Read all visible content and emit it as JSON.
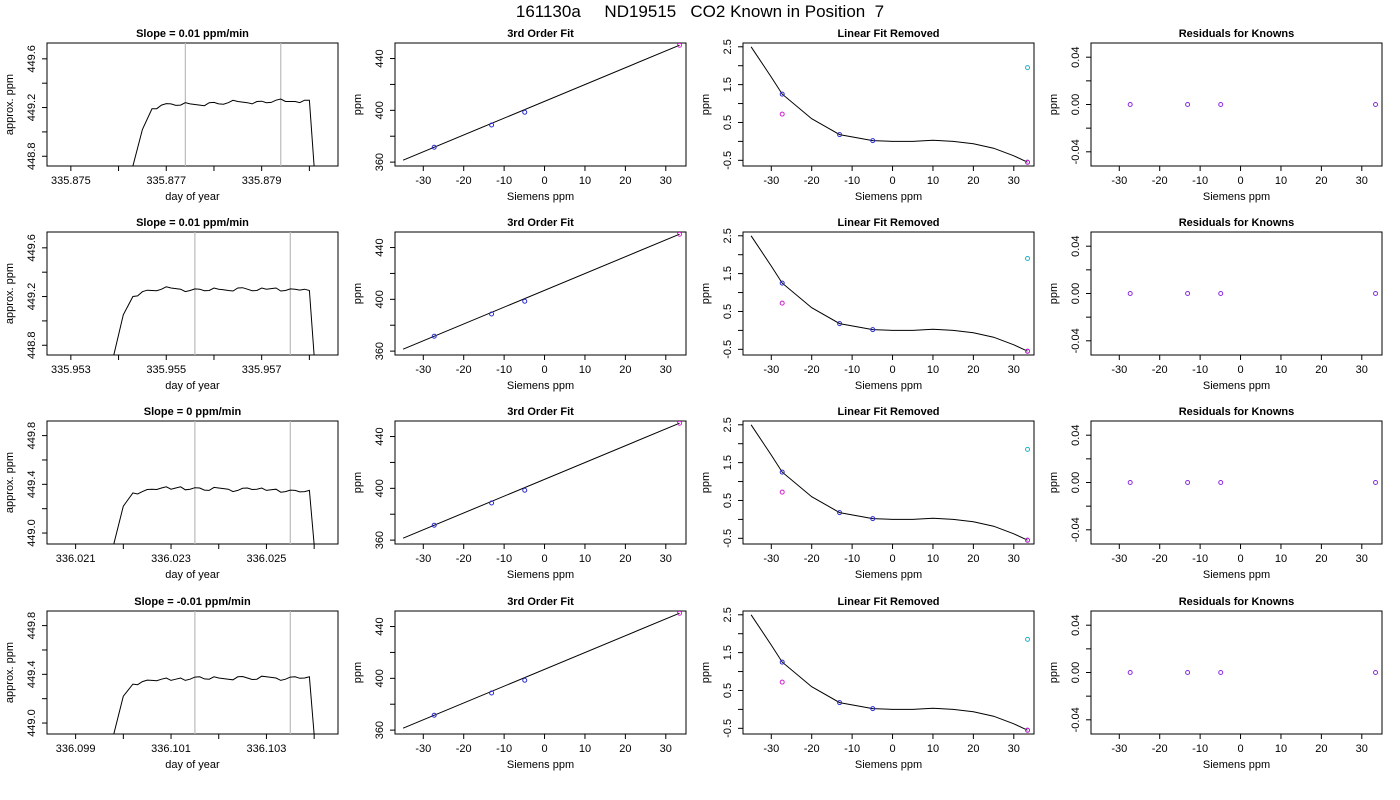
{
  "main_title": "161130a     ND19515   CO2 Known in Position  7",
  "colors": {
    "trace": "#000000",
    "cutoff_lines": "#bbbbbb",
    "fit_points": "#2a2ad0",
    "reference_points": "#d020d0",
    "residual_points": "#8a2be2",
    "fit_curve": "#000000",
    "outlier_point": "#20b0c8"
  },
  "chart_data": [
    {
      "type": "line",
      "row": 1,
      "panel": "timeseries",
      "title": "Slope =  0.01  ppm/min",
      "xlabel": "day of year",
      "ylabel": "approx. ppm",
      "xlim": [
        335.8745,
        335.8806
      ],
      "ylim": [
        448.72,
        449.73
      ],
      "xticks": [
        "335.875",
        "335.877",
        "335.879"
      ],
      "xtick_values": [
        335.875,
        335.876,
        335.877,
        335.878,
        335.879,
        335.88
      ],
      "xtick_labels_at": [
        335.875,
        335.877,
        335.879
      ],
      "yticks": [
        "448.8",
        "449.2",
        "449.6"
      ],
      "ytick_values": [
        448.8,
        449.0,
        449.2,
        449.4,
        449.6
      ],
      "ytick_labels_at": [
        448.8,
        449.2,
        449.6
      ],
      "vlines": [
        335.8774,
        335.8794
      ],
      "series": [
        {
          "x": [
            335.8763,
            335.8765,
            335.8767,
            335.8769,
            335.8771,
            335.8773,
            335.8775,
            335.8777,
            335.8779,
            335.8781,
            335.8783,
            335.8785,
            335.8787,
            335.8789,
            335.8791,
            335.8793,
            335.8795,
            335.8797,
            335.8799,
            335.88,
            335.8801
          ],
          "y": [
            448.72,
            449.02,
            449.19,
            449.22,
            449.23,
            449.22,
            449.23,
            449.22,
            449.24,
            449.23,
            449.24,
            449.25,
            449.24,
            449.25,
            449.24,
            449.26,
            449.25,
            449.25,
            449.26,
            449.26,
            448.72
          ]
        }
      ]
    },
    {
      "type": "line",
      "row": 1,
      "panel": "fit",
      "title": "3rd Order Fit",
      "xlabel": "Siemens ppm",
      "ylabel": "ppm",
      "xlim": [
        -37,
        35
      ],
      "ylim": [
        357,
        452
      ],
      "xticks": [
        -30,
        -20,
        -10,
        0,
        10,
        20,
        30
      ],
      "yticks": [
        360,
        400,
        440
      ],
      "minor_yticks": [
        380,
        420
      ],
      "points": [
        [
          -27.3,
          371.5
        ],
        [
          -13.1,
          388.7
        ],
        [
          -4.9,
          398.5
        ],
        [
          33.4,
          450.3
        ]
      ]
    },
    {
      "type": "scatter",
      "row": 1,
      "panel": "linear_removed",
      "title": "Linear Fit Removed",
      "xlabel": "Siemens ppm",
      "ylabel": "ppm",
      "xlim": [
        -37,
        35
      ],
      "ylim": [
        -0.65,
        2.6
      ],
      "xticks": [
        -30,
        -20,
        -10,
        0,
        10,
        20,
        30
      ],
      "yticks": [
        -0.5,
        0.5,
        1.5,
        2.5
      ],
      "minor_yticks": [
        0.0,
        1.0,
        2.0
      ],
      "fit_points": [
        [
          -27.3,
          1.25
        ],
        [
          -13.1,
          0.18
        ],
        [
          -4.9,
          0.02
        ],
        [
          33.4,
          -0.55
        ]
      ],
      "reference_points": [
        [
          -27.3,
          0.72
        ],
        [
          33.4,
          -0.55
        ]
      ],
      "outlier_points": [
        [
          33.4,
          1.95
        ]
      ],
      "curve_coeffs": [
        0.016,
        -0.0112,
        0.00038,
        -1.62e-05
      ]
    },
    {
      "type": "scatter",
      "row": 1,
      "panel": "residuals",
      "title": "Residuals for Knowns",
      "xlabel": "Siemens ppm",
      "ylabel": "ppm",
      "xlim": [
        -37,
        35
      ],
      "ylim": [
        -0.052,
        0.052
      ],
      "xticks": [
        -30,
        -20,
        -10,
        0,
        10,
        20,
        30
      ],
      "yticks": [
        "-0.04",
        "0.00",
        "0.04"
      ],
      "ytick_values": [
        -0.04,
        0.0,
        0.04
      ],
      "minor_yticks": [
        -0.02,
        0.02
      ],
      "points": [
        [
          -27.3,
          0
        ],
        [
          -13.1,
          0
        ],
        [
          -4.9,
          0
        ],
        [
          33.4,
          0
        ]
      ]
    },
    {
      "type": "line",
      "row": 2,
      "panel": "timeseries",
      "title": "Slope =  0.01  ppm/min",
      "xlabel": "day of year",
      "ylabel": "approx. ppm",
      "xlim": [
        335.9525,
        335.9586
      ],
      "ylim": [
        448.72,
        449.73
      ],
      "xticks": [
        "335.953",
        "335.955",
        "335.957"
      ],
      "xtick_values": [
        335.953,
        335.954,
        335.955,
        335.956,
        335.957,
        335.958
      ],
      "xtick_labels_at": [
        335.953,
        335.955,
        335.957
      ],
      "yticks": [
        "448.8",
        "449.2",
        "449.6"
      ],
      "ytick_values": [
        448.8,
        449.0,
        449.2,
        449.4,
        449.6
      ],
      "ytick_labels_at": [
        448.8,
        449.2,
        449.6
      ],
      "vlines": [
        335.9556,
        335.9576
      ],
      "series": [
        {
          "x": [
            335.9539,
            335.9541,
            335.9543,
            335.9545,
            335.9547,
            335.9549,
            335.9551,
            335.9553,
            335.9555,
            335.9557,
            335.9559,
            335.9561,
            335.9563,
            335.9565,
            335.9567,
            335.9569,
            335.9571,
            335.9573,
            335.9575,
            335.9577,
            335.9579,
            335.958,
            335.9581
          ],
          "y": [
            448.72,
            449.05,
            449.2,
            449.24,
            449.25,
            449.26,
            449.27,
            449.26,
            449.25,
            449.26,
            449.25,
            449.26,
            449.25,
            449.27,
            449.26,
            449.25,
            449.26,
            449.27,
            449.25,
            449.26,
            449.26,
            449.25,
            448.72
          ]
        }
      ]
    },
    {
      "type": "line",
      "row": 2,
      "panel": "fit",
      "title": "3rd Order Fit",
      "xlabel": "Siemens ppm",
      "ylabel": "ppm",
      "xlim": [
        -37,
        35
      ],
      "ylim": [
        357,
        452
      ],
      "xticks": [
        -30,
        -20,
        -10,
        0,
        10,
        20,
        30
      ],
      "yticks": [
        360,
        400,
        440
      ],
      "minor_yticks": [
        380,
        420
      ],
      "points": [
        [
          -27.3,
          371.5
        ],
        [
          -13.1,
          388.7
        ],
        [
          -4.9,
          398.5
        ],
        [
          33.4,
          450.3
        ]
      ]
    },
    {
      "type": "scatter",
      "row": 2,
      "panel": "linear_removed",
      "title": "Linear Fit Removed",
      "xlabel": "Siemens ppm",
      "ylabel": "ppm",
      "xlim": [
        -37,
        35
      ],
      "ylim": [
        -0.65,
        2.6
      ],
      "xticks": [
        -30,
        -20,
        -10,
        0,
        10,
        20,
        30
      ],
      "yticks": [
        -0.5,
        0.5,
        1.5,
        2.5
      ],
      "minor_yticks": [
        0.0,
        1.0,
        2.0
      ],
      "fit_points": [
        [
          -27.3,
          1.25
        ],
        [
          -13.1,
          0.18
        ],
        [
          -4.9,
          0.02
        ],
        [
          33.4,
          -0.55
        ]
      ],
      "reference_points": [
        [
          -27.3,
          0.72
        ],
        [
          33.4,
          -0.55
        ]
      ],
      "outlier_points": [
        [
          33.4,
          1.9
        ]
      ],
      "curve_coeffs": [
        0.016,
        -0.0112,
        0.00038,
        -1.62e-05
      ]
    },
    {
      "type": "scatter",
      "row": 2,
      "panel": "residuals",
      "title": "Residuals for Knowns",
      "xlabel": "Siemens ppm",
      "ylabel": "ppm",
      "xlim": [
        -37,
        35
      ],
      "ylim": [
        -0.052,
        0.052
      ],
      "xticks": [
        -30,
        -20,
        -10,
        0,
        10,
        20,
        30
      ],
      "yticks": [
        "-0.04",
        "0.00",
        "0.04"
      ],
      "ytick_values": [
        -0.04,
        0.0,
        0.04
      ],
      "minor_yticks": [
        -0.02,
        0.02
      ],
      "points": [
        [
          -27.3,
          0
        ],
        [
          -13.1,
          0
        ],
        [
          -4.9,
          0
        ],
        [
          33.4,
          0
        ]
      ]
    },
    {
      "type": "line",
      "row": 3,
      "panel": "timeseries",
      "title": "Slope =  0  ppm/min",
      "xlabel": "day of year",
      "ylabel": "approx. ppm",
      "xlim": [
        336.0204,
        336.0265
      ],
      "ylim": [
        448.91,
        449.92
      ],
      "xticks": [
        "336.021",
        "336.023",
        "336.025"
      ],
      "xtick_values": [
        336.021,
        336.022,
        336.023,
        336.024,
        336.025,
        336.026
      ],
      "xtick_labels_at": [
        336.021,
        336.023,
        336.025
      ],
      "yticks": [
        "449.0",
        "449.4",
        "449.8"
      ],
      "ytick_values": [
        449.0,
        449.2,
        449.4,
        449.6,
        449.8
      ],
      "ytick_labels_at": [
        449.0,
        449.4,
        449.8
      ],
      "vlines": [
        336.0235,
        336.0255
      ],
      "series": [
        {
          "x": [
            336.0218,
            336.022,
            336.0222,
            336.0224,
            336.0226,
            336.0228,
            336.023,
            336.0232,
            336.0234,
            336.0236,
            336.0238,
            336.024,
            336.0242,
            336.0244,
            336.0246,
            336.0248,
            336.025,
            336.0252,
            336.0254,
            336.0256,
            336.0258,
            336.0259,
            336.026
          ],
          "y": [
            448.91,
            449.22,
            449.33,
            449.34,
            449.36,
            449.37,
            449.36,
            449.38,
            449.36,
            449.37,
            449.35,
            449.37,
            449.36,
            449.35,
            449.37,
            449.36,
            449.35,
            449.36,
            449.34,
            449.35,
            449.34,
            449.35,
            448.91
          ]
        }
      ]
    },
    {
      "type": "line",
      "row": 3,
      "panel": "fit",
      "title": "3rd Order Fit",
      "xlabel": "Siemens ppm",
      "ylabel": "ppm",
      "xlim": [
        -37,
        35
      ],
      "ylim": [
        357,
        452
      ],
      "xticks": [
        -30,
        -20,
        -10,
        0,
        10,
        20,
        30
      ],
      "yticks": [
        360,
        400,
        440
      ],
      "minor_yticks": [
        380,
        420
      ],
      "points": [
        [
          -27.3,
          371.5
        ],
        [
          -13.1,
          388.7
        ],
        [
          -4.9,
          398.5
        ],
        [
          33.4,
          450.3
        ]
      ]
    },
    {
      "type": "scatter",
      "row": 3,
      "panel": "linear_removed",
      "title": "Linear Fit Removed",
      "xlabel": "Siemens ppm",
      "ylabel": "ppm",
      "xlim": [
        -37,
        35
      ],
      "ylim": [
        -0.65,
        2.6
      ],
      "xticks": [
        -30,
        -20,
        -10,
        0,
        10,
        20,
        30
      ],
      "yticks": [
        -0.5,
        0.5,
        1.5,
        2.5
      ],
      "minor_yticks": [
        0.0,
        1.0,
        2.0
      ],
      "fit_points": [
        [
          -27.3,
          1.25
        ],
        [
          -13.1,
          0.18
        ],
        [
          -4.9,
          0.02
        ],
        [
          33.4,
          -0.55
        ]
      ],
      "reference_points": [
        [
          -27.3,
          0.72
        ],
        [
          33.4,
          -0.55
        ]
      ],
      "outlier_points": [
        [
          33.4,
          1.85
        ]
      ],
      "curve_coeffs": [
        0.016,
        -0.0112,
        0.00038,
        -1.62e-05
      ]
    },
    {
      "type": "scatter",
      "row": 3,
      "panel": "residuals",
      "title": "Residuals for Knowns",
      "xlabel": "Siemens ppm",
      "ylabel": "ppm",
      "xlim": [
        -37,
        35
      ],
      "ylim": [
        -0.052,
        0.052
      ],
      "xticks": [
        -30,
        -20,
        -10,
        0,
        10,
        20,
        30
      ],
      "yticks": [
        "-0.04",
        "0.00",
        "0.04"
      ],
      "ytick_values": [
        -0.04,
        0.0,
        0.04
      ],
      "minor_yticks": [
        -0.02,
        0.02
      ],
      "points": [
        [
          -27.3,
          0
        ],
        [
          -13.1,
          0
        ],
        [
          -4.9,
          0
        ],
        [
          33.4,
          0
        ]
      ]
    },
    {
      "type": "line",
      "row": 4,
      "panel": "timeseries",
      "title": "Slope =  -0.01  ppm/min",
      "xlabel": "day of year",
      "ylabel": "approx. ppm",
      "xlim": [
        336.0984,
        336.1045
      ],
      "ylim": [
        448.91,
        449.92
      ],
      "xticks": [
        "336.099",
        "336.101",
        "336.103"
      ],
      "xtick_values": [
        336.099,
        336.1,
        336.101,
        336.102,
        336.103,
        336.104
      ],
      "xtick_labels_at": [
        336.099,
        336.101,
        336.103
      ],
      "yticks": [
        "449.0",
        "449.4",
        "449.8"
      ],
      "ytick_values": [
        449.0,
        449.2,
        449.4,
        449.6,
        449.8
      ],
      "ytick_labels_at": [
        449.0,
        449.4,
        449.8
      ],
      "vlines": [
        336.1015,
        336.1035
      ],
      "series": [
        {
          "x": [
            336.0998,
            336.1,
            336.1002,
            336.1004,
            336.1006,
            336.1008,
            336.101,
            336.1012,
            336.1014,
            336.1016,
            336.1018,
            336.102,
            336.1022,
            336.1024,
            336.1026,
            336.1028,
            336.103,
            336.1032,
            336.1034,
            336.1036,
            336.1038,
            336.1039,
            336.104
          ],
          "y": [
            448.91,
            449.22,
            449.32,
            449.34,
            449.35,
            449.36,
            449.35,
            449.37,
            449.36,
            449.38,
            449.36,
            449.37,
            449.36,
            449.38,
            449.37,
            449.36,
            449.38,
            449.37,
            449.36,
            449.38,
            449.37,
            449.38,
            448.91
          ]
        }
      ]
    },
    {
      "type": "line",
      "row": 4,
      "panel": "fit",
      "title": "3rd Order Fit",
      "xlabel": "Siemens ppm",
      "ylabel": "ppm",
      "xlim": [
        -37,
        35
      ],
      "ylim": [
        357,
        452
      ],
      "xticks": [
        -30,
        -20,
        -10,
        0,
        10,
        20,
        30
      ],
      "yticks": [
        360,
        400,
        440
      ],
      "minor_yticks": [
        380,
        420
      ],
      "points": [
        [
          -27.3,
          371.5
        ],
        [
          -13.1,
          388.7
        ],
        [
          -4.9,
          398.5
        ],
        [
          33.4,
          450.3
        ]
      ]
    },
    {
      "type": "scatter",
      "row": 4,
      "panel": "linear_removed",
      "title": "Linear Fit Removed",
      "xlabel": "Siemens ppm",
      "ylabel": "ppm",
      "xlim": [
        -37,
        35
      ],
      "ylim": [
        -0.65,
        2.6
      ],
      "xticks": [
        -30,
        -20,
        -10,
        0,
        10,
        20,
        30
      ],
      "yticks": [
        -0.5,
        0.5,
        1.5,
        2.5
      ],
      "minor_yticks": [
        0.0,
        1.0,
        2.0
      ],
      "fit_points": [
        [
          -27.3,
          1.25
        ],
        [
          -13.1,
          0.18
        ],
        [
          -4.9,
          0.02
        ],
        [
          33.4,
          -0.55
        ]
      ],
      "reference_points": [
        [
          -27.3,
          0.72
        ],
        [
          33.4,
          -0.55
        ]
      ],
      "outlier_points": [
        [
          33.4,
          1.85
        ]
      ],
      "curve_coeffs": [
        0.016,
        -0.0112,
        0.00038,
        -1.62e-05
      ]
    },
    {
      "type": "scatter",
      "row": 4,
      "panel": "residuals",
      "title": "Residuals for Knowns",
      "xlabel": "Siemens ppm",
      "ylabel": "ppm",
      "xlim": [
        -37,
        35
      ],
      "ylim": [
        -0.052,
        0.052
      ],
      "xticks": [
        -30,
        -20,
        -10,
        0,
        10,
        20,
        30
      ],
      "yticks": [
        "-0.04",
        "0.00",
        "0.04"
      ],
      "ytick_values": [
        -0.04,
        0.0,
        0.04
      ],
      "minor_yticks": [
        -0.02,
        0.02
      ],
      "points": [
        [
          -27.3,
          0
        ],
        [
          -13.1,
          0
        ],
        [
          -4.9,
          0
        ],
        [
          33.4,
          0
        ]
      ]
    }
  ]
}
